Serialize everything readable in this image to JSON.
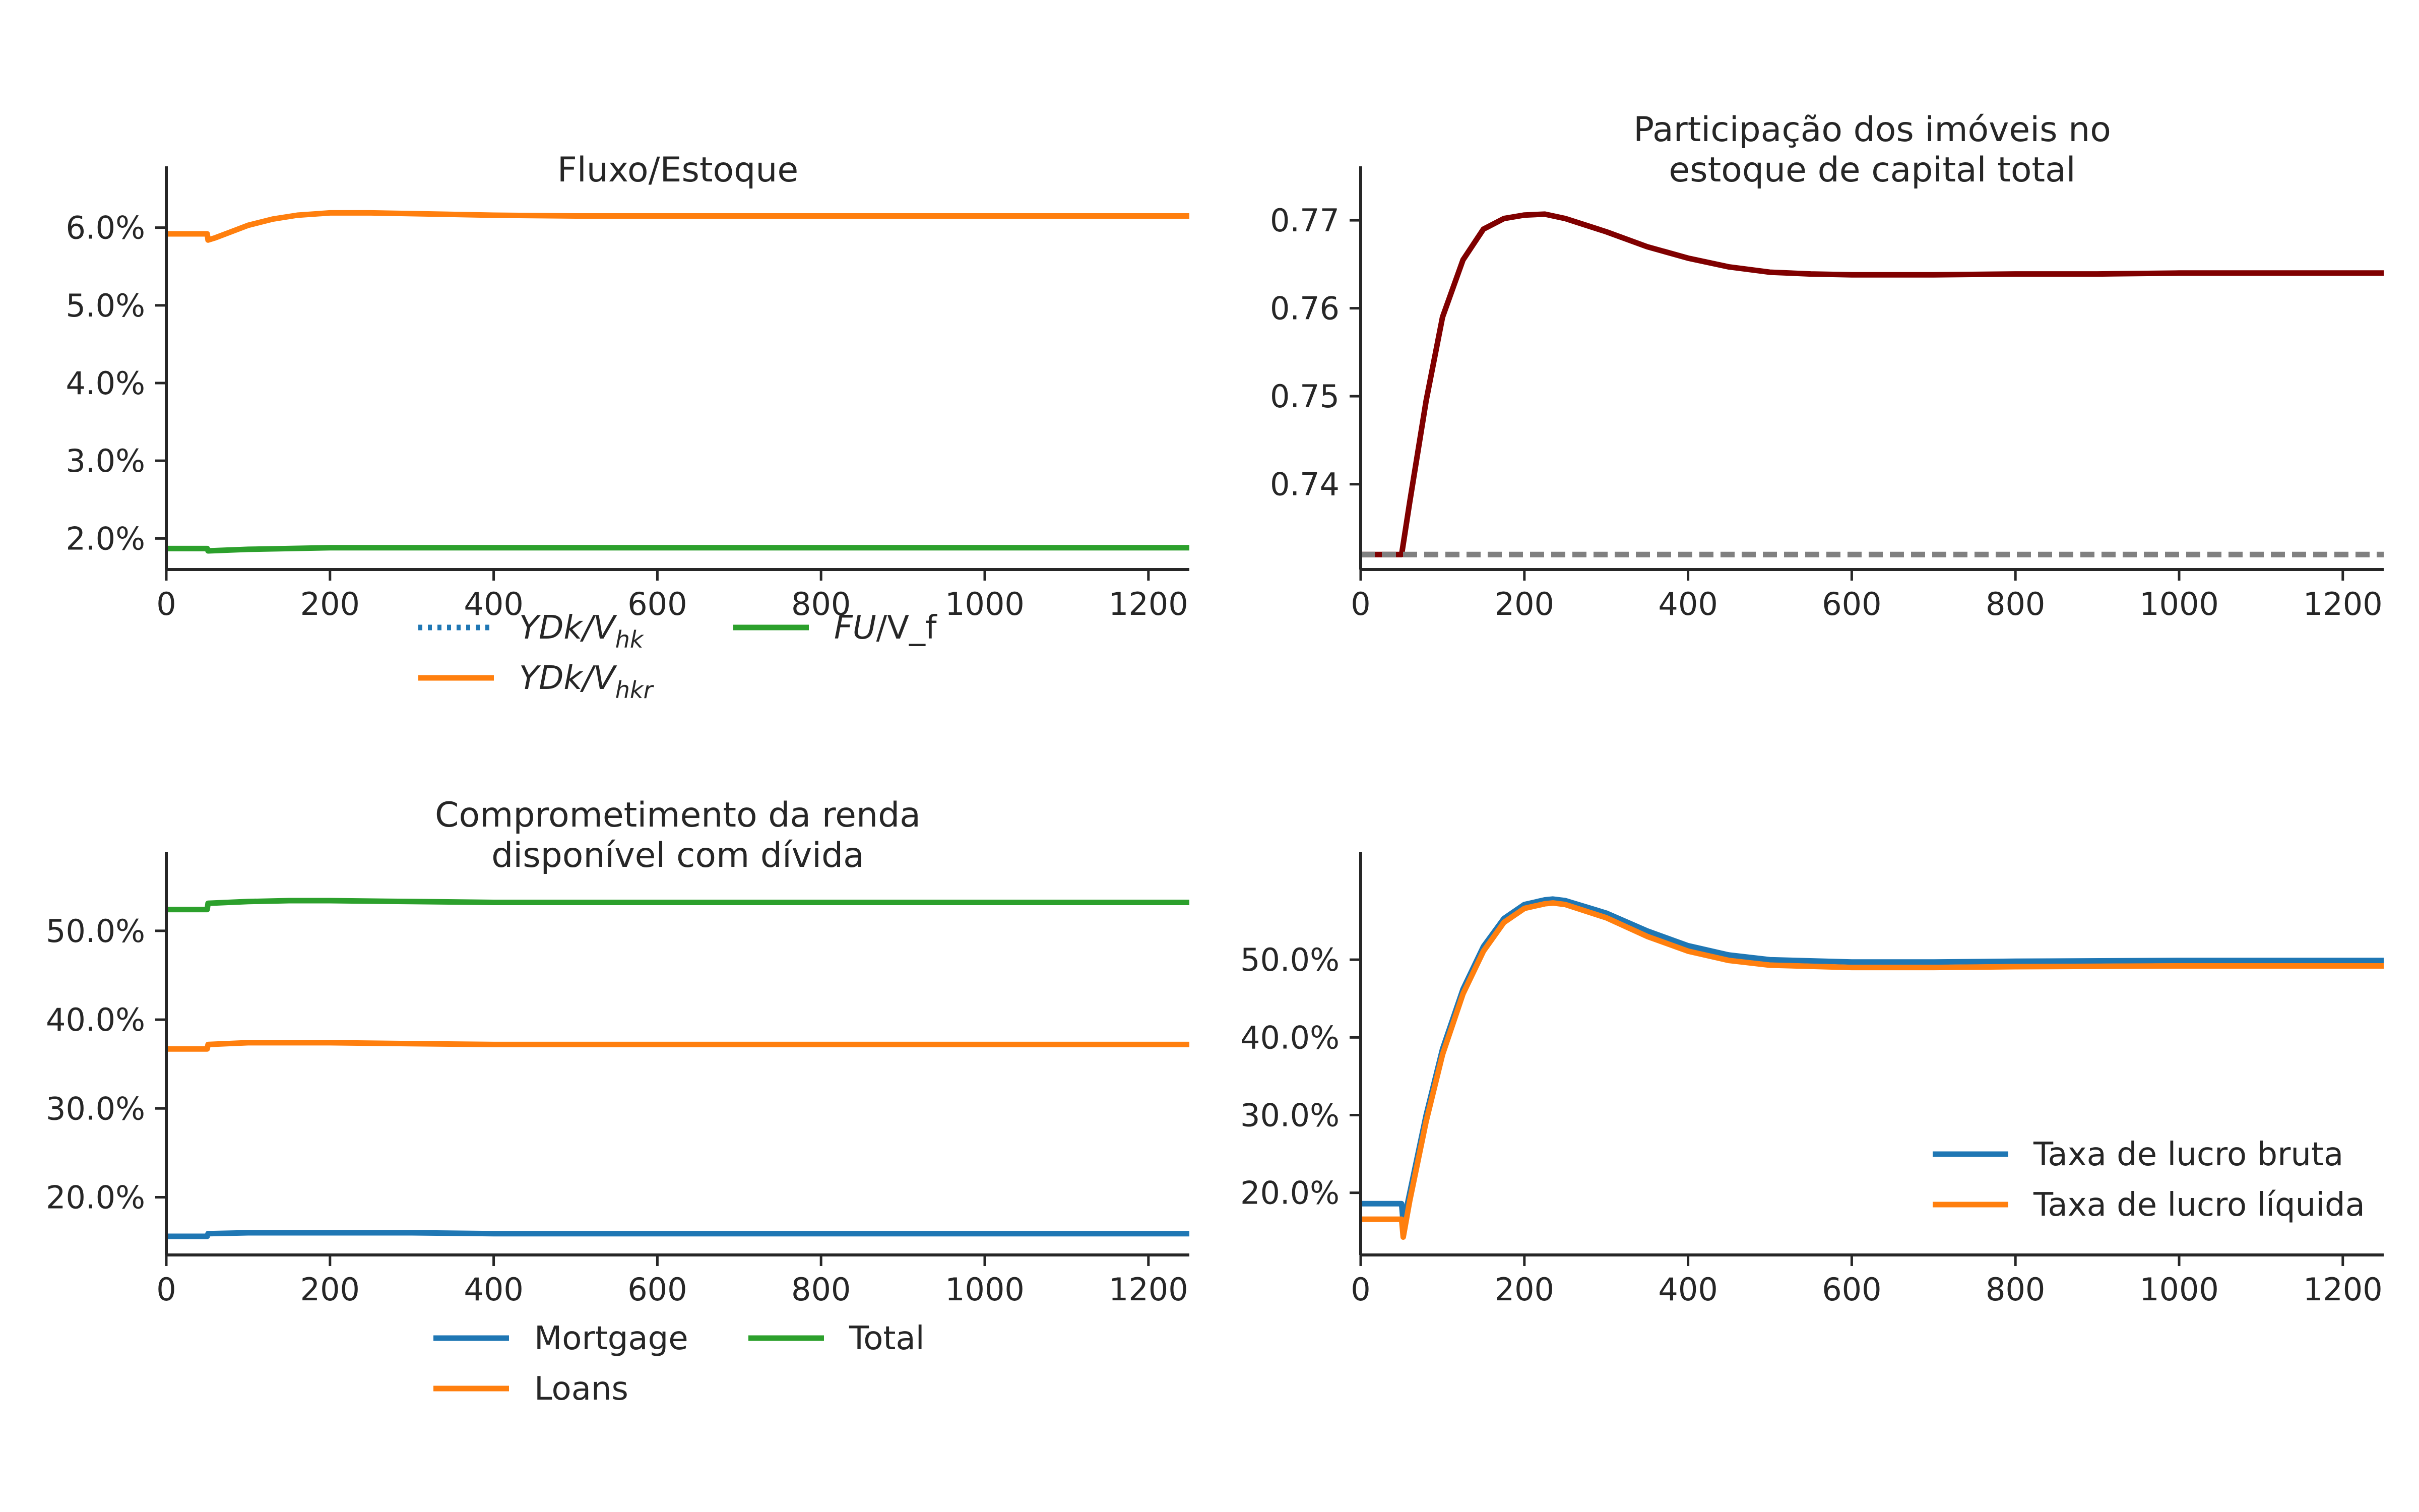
{
  "chart_data": [
    {
      "type": "line",
      "title": [
        "Fluxo/Estoque"
      ],
      "xlim": [
        0,
        1250
      ],
      "ylim": [
        0.016,
        0.064
      ],
      "y_format": "percent",
      "xticks": [
        0,
        200,
        400,
        600,
        800,
        1000,
        1200
      ],
      "xtick_labels": [
        "0",
        "200",
        "400",
        "600",
        "800",
        "1000",
        "1200"
      ],
      "yticks": [
        0.02,
        0.03,
        0.04,
        0.05,
        0.06
      ],
      "ytick_labels": [
        "2.0%",
        "3.0%",
        "4.0%",
        "5.0%",
        "6.0%"
      ],
      "legend_position": "below-center",
      "legend_columns": 2,
      "series": [
        {
          "name": "YDk/V_hk",
          "legend_parts": [
            {
              "t": "YDk/V",
              "style": "italic"
            },
            {
              "t": "hk",
              "style": "italic-sub"
            }
          ],
          "color": "#1f77b4",
          "dash": "dotted",
          "x": [
            0,
            50
          ],
          "y": [
            0.0592,
            0.0592
          ]
        },
        {
          "name": "YDk/V_hkr",
          "legend_parts": [
            {
              "t": "YDk/V",
              "style": "italic"
            },
            {
              "t": "hkr",
              "style": "italic-sub"
            }
          ],
          "color": "#ff7f0e",
          "dash": "solid",
          "x": [
            0,
            50,
            51,
            60,
            80,
            100,
            130,
            160,
            200,
            250,
            300,
            400,
            500,
            600,
            800,
            1000,
            1250
          ],
          "y": [
            0.0592,
            0.0592,
            0.0584,
            0.0587,
            0.0595,
            0.0603,
            0.0611,
            0.0616,
            0.0619,
            0.0619,
            0.0618,
            0.0616,
            0.0615,
            0.0615,
            0.0615,
            0.0615,
            0.0615
          ]
        },
        {
          "name": "FU/V_f",
          "legend_parts": [
            {
              "t": "FU",
              "style": "italic"
            },
            {
              "t": "/V_f",
              "style": "normal"
            }
          ],
          "color": "#2ca02c",
          "dash": "solid",
          "x": [
            0,
            50,
            51,
            100,
            200,
            300,
            500,
            1250
          ],
          "y": [
            0.0187,
            0.0187,
            0.0184,
            0.0186,
            0.0188,
            0.0188,
            0.0188,
            0.0188
          ]
        }
      ]
    },
    {
      "type": "line",
      "title": [
        "Participação dos imóveis no",
        "estoque de capital total"
      ],
      "xlim": [
        0,
        1250
      ],
      "ylim": [
        0.7303,
        0.7727
      ],
      "y_format": "plain2",
      "xticks": [
        0,
        200,
        400,
        600,
        800,
        1000,
        1200
      ],
      "xtick_labels": [
        "0",
        "200",
        "400",
        "600",
        "800",
        "1000",
        "1200"
      ],
      "yticks": [
        0.74,
        0.75,
        0.76,
        0.77
      ],
      "ytick_labels": [
        "0.74",
        "0.75",
        "0.76",
        "0.77"
      ],
      "series": [
        {
          "name": "",
          "color": "#800000",
          "dash": "solid",
          "x": [
            0,
            50,
            60,
            80,
            100,
            125,
            150,
            175,
            200,
            225,
            250,
            300,
            350,
            400,
            450,
            500,
            550,
            600,
            700,
            800,
            900,
            1000,
            1100,
            1250
          ],
          "y": [
            0.732,
            0.732,
            0.738,
            0.7495,
            0.759,
            0.7655,
            0.769,
            0.7702,
            0.7706,
            0.7707,
            0.7702,
            0.7687,
            0.767,
            0.7657,
            0.7647,
            0.7641,
            0.7639,
            0.7638,
            0.7638,
            0.7639,
            0.7639,
            0.764,
            0.764,
            0.764
          ]
        },
        {
          "name": "",
          "color": "#808080",
          "dash": "dashed",
          "x": [
            0,
            1250
          ],
          "y": [
            0.732,
            0.732
          ]
        }
      ]
    },
    {
      "type": "line",
      "title": [
        "Comprometimento da renda",
        "disponível com dívida"
      ],
      "xlim": [
        0,
        1250
      ],
      "ylim": [
        0.135,
        0.555
      ],
      "y_format": "percent",
      "xticks": [
        0,
        200,
        400,
        600,
        800,
        1000,
        1200
      ],
      "xtick_labels": [
        "0",
        "200",
        "400",
        "600",
        "800",
        "1000",
        "1200"
      ],
      "yticks": [
        0.2,
        0.3,
        0.4,
        0.5
      ],
      "ytick_labels": [
        "20.0%",
        "30.0%",
        "40.0%",
        "50.0%"
      ],
      "legend_position": "below-center",
      "legend_columns": 2,
      "series": [
        {
          "name": "Mortgage",
          "color": "#1f77b4",
          "dash": "solid",
          "x": [
            0,
            50,
            51,
            100,
            200,
            300,
            400,
            1250
          ],
          "y": [
            0.156,
            0.156,
            0.159,
            0.16,
            0.16,
            0.16,
            0.159,
            0.159
          ]
        },
        {
          "name": "Loans",
          "color": "#ff7f0e",
          "dash": "solid",
          "x": [
            0,
            50,
            51,
            100,
            200,
            300,
            400,
            1250
          ],
          "y": [
            0.367,
            0.367,
            0.372,
            0.374,
            0.374,
            0.373,
            0.372,
            0.372
          ]
        },
        {
          "name": "Total",
          "color": "#2ca02c",
          "dash": "solid",
          "x": [
            0,
            50,
            51,
            100,
            150,
            200,
            300,
            400,
            1250
          ],
          "y": [
            0.524,
            0.524,
            0.531,
            0.533,
            0.534,
            0.534,
            0.533,
            0.532,
            0.532
          ]
        }
      ]
    },
    {
      "type": "line",
      "title": [],
      "xlim": [
        0,
        1250
      ],
      "ylim": [
        0.12,
        0.6
      ],
      "y_format": "percent",
      "xticks": [
        0,
        200,
        400,
        600,
        800,
        1000,
        1200
      ],
      "xtick_labels": [
        "0",
        "200",
        "400",
        "600",
        "800",
        "1000",
        "1200"
      ],
      "yticks": [
        0.2,
        0.3,
        0.4,
        0.5
      ],
      "ytick_labels": [
        "20.0%",
        "30.0%",
        "40.0%",
        "50.0%"
      ],
      "legend_position": "lower-right",
      "legend_columns": 1,
      "series": [
        {
          "name": "Taxa de lucro bruta",
          "color": "#1f77b4",
          "dash": "solid",
          "x": [
            0,
            50,
            52,
            60,
            80,
            100,
            125,
            150,
            175,
            200,
            225,
            235,
            250,
            300,
            350,
            400,
            450,
            500,
            600,
            700,
            800,
            1000,
            1250
          ],
          "y": [
            0.186,
            0.186,
            0.16,
            0.2,
            0.3,
            0.385,
            0.462,
            0.517,
            0.553,
            0.571,
            0.577,
            0.578,
            0.576,
            0.56,
            0.537,
            0.518,
            0.506,
            0.5,
            0.497,
            0.497,
            0.498,
            0.499,
            0.499
          ]
        },
        {
          "name": "Taxa de lucro líquida",
          "color": "#ff7f0e",
          "dash": "solid",
          "x": [
            0,
            50,
            52,
            60,
            80,
            100,
            125,
            150,
            175,
            200,
            225,
            235,
            250,
            300,
            350,
            400,
            450,
            500,
            600,
            700,
            800,
            1000,
            1250
          ],
          "y": [
            0.166,
            0.166,
            0.143,
            0.19,
            0.292,
            0.378,
            0.456,
            0.511,
            0.548,
            0.566,
            0.572,
            0.573,
            0.571,
            0.554,
            0.53,
            0.511,
            0.499,
            0.493,
            0.49,
            0.49,
            0.491,
            0.492,
            0.492
          ]
        }
      ]
    }
  ]
}
